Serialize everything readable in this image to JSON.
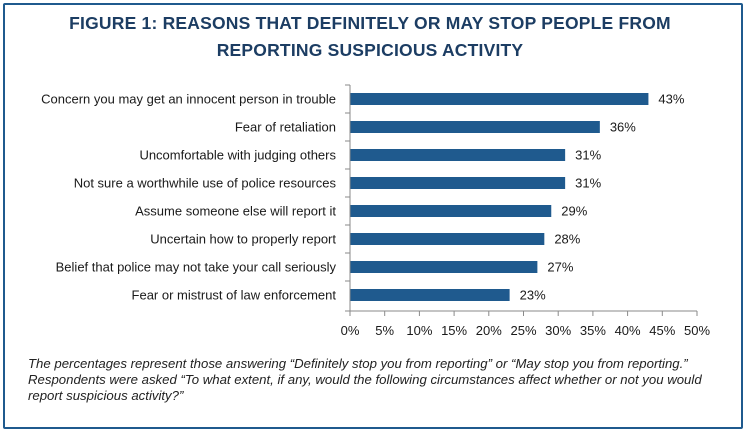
{
  "title": "FIGURE 1: REASONS THAT DEFINITELY OR MAY STOP PEOPLE FROM REPORTING SUSPICIOUS ACTIVITY",
  "note": "The percentages represent those answering “Definitely stop you from reporting” or “May stop you from reporting.”  Respondents were asked “To what extent, if any, would the following circumstances affect whether or not you would report suspicious activity?”",
  "colors": {
    "bar": "#1f5a8e",
    "title": "#1c3d63",
    "border": "#1f5a8e"
  },
  "chart_data": {
    "type": "bar",
    "orientation": "horizontal",
    "categories": [
      "Concern you may get an innocent person in trouble",
      "Fear of retaliation",
      "Uncomfortable with judging others",
      "Not sure a worthwhile use of police resources",
      "Assume someone else will report it",
      "Uncertain how to properly report",
      "Belief that police may not take your call seriously",
      "Fear or mistrust of law enforcement"
    ],
    "values": [
      43,
      36,
      31,
      31,
      29,
      28,
      27,
      23
    ],
    "value_labels": [
      "43%",
      "36%",
      "31%",
      "31%",
      "29%",
      "28%",
      "27%",
      "23%"
    ],
    "xlim": [
      0,
      50
    ],
    "ticks": [
      "0%",
      "5%",
      "10%",
      "15%",
      "20%",
      "25%",
      "30%",
      "35%",
      "40%",
      "45%",
      "50%"
    ],
    "grid": false
  }
}
